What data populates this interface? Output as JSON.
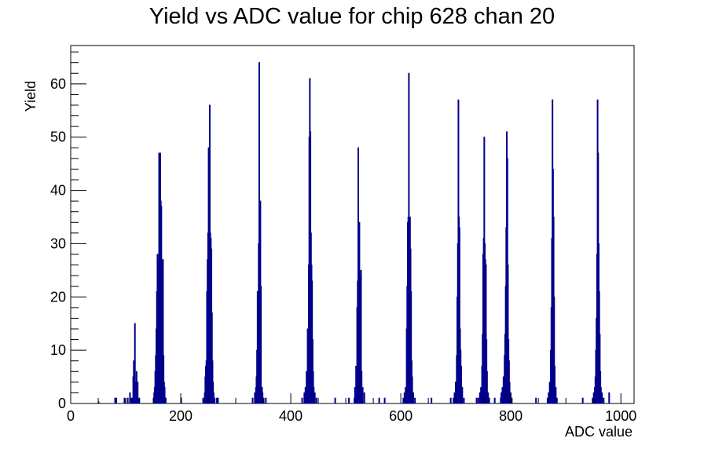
{
  "chart_data": {
    "type": "bar",
    "title": "Yield vs ADC value for chip 628 chan 20",
    "xlabel": "ADC value",
    "ylabel": "Yield",
    "xlim": [
      0,
      1024
    ],
    "ylim": [
      0,
      67.2
    ],
    "grid": false,
    "legend": "none",
    "x_ticks": [
      0,
      200,
      400,
      600,
      800,
      1000
    ],
    "y_ticks": [
      0,
      10,
      20,
      30,
      40,
      50,
      60
    ],
    "line_color": "#00008b",
    "bins": [
      {
        "x": 50,
        "y": 0.3
      },
      {
        "x": 80,
        "y": 1
      },
      {
        "x": 82,
        "y": 1
      },
      {
        "x": 97,
        "y": 1
      },
      {
        "x": 103,
        "y": 1
      },
      {
        "x": 107,
        "y": 2
      },
      {
        "x": 109,
        "y": 1
      },
      {
        "x": 111,
        "y": 1
      },
      {
        "x": 113,
        "y": 5
      },
      {
        "x": 114,
        "y": 8
      },
      {
        "x": 115,
        "y": 5
      },
      {
        "x": 116,
        "y": 15
      },
      {
        "x": 117,
        "y": 3
      },
      {
        "x": 118,
        "y": 4
      },
      {
        "x": 119,
        "y": 6
      },
      {
        "x": 120,
        "y": 2
      },
      {
        "x": 121,
        "y": 4
      },
      {
        "x": 122,
        "y": 1
      },
      {
        "x": 124,
        "y": 1
      },
      {
        "x": 150,
        "y": 1
      },
      {
        "x": 151,
        "y": 2
      },
      {
        "x": 152,
        "y": 3
      },
      {
        "x": 153,
        "y": 6
      },
      {
        "x": 154,
        "y": 9
      },
      {
        "x": 155,
        "y": 14
      },
      {
        "x": 156,
        "y": 21
      },
      {
        "x": 157,
        "y": 28
      },
      {
        "x": 158,
        "y": 25
      },
      {
        "x": 159,
        "y": 27
      },
      {
        "x": 160,
        "y": 47
      },
      {
        "x": 161,
        "y": 44
      },
      {
        "x": 162,
        "y": 47
      },
      {
        "x": 163,
        "y": 38
      },
      {
        "x": 164,
        "y": 37
      },
      {
        "x": 165,
        "y": 27
      },
      {
        "x": 166,
        "y": 12
      },
      {
        "x": 167,
        "y": 27
      },
      {
        "x": 168,
        "y": 9
      },
      {
        "x": 169,
        "y": 4
      },
      {
        "x": 170,
        "y": 3
      },
      {
        "x": 171,
        "y": 1
      },
      {
        "x": 172,
        "y": 1
      },
      {
        "x": 200,
        "y": 1
      },
      {
        "x": 240,
        "y": 1
      },
      {
        "x": 243,
        "y": 2
      },
      {
        "x": 244,
        "y": 5
      },
      {
        "x": 245,
        "y": 7
      },
      {
        "x": 246,
        "y": 8
      },
      {
        "x": 247,
        "y": 21
      },
      {
        "x": 248,
        "y": 27
      },
      {
        "x": 249,
        "y": 32
      },
      {
        "x": 250,
        "y": 48
      },
      {
        "x": 251,
        "y": 42
      },
      {
        "x": 252,
        "y": 56
      },
      {
        "x": 253,
        "y": 32
      },
      {
        "x": 254,
        "y": 31
      },
      {
        "x": 255,
        "y": 29
      },
      {
        "x": 256,
        "y": 17
      },
      {
        "x": 257,
        "y": 8
      },
      {
        "x": 258,
        "y": 4
      },
      {
        "x": 259,
        "y": 2
      },
      {
        "x": 261,
        "y": 1
      },
      {
        "x": 265,
        "y": 1
      },
      {
        "x": 267,
        "y": 1
      },
      {
        "x": 330,
        "y": 1
      },
      {
        "x": 334,
        "y": 2
      },
      {
        "x": 336,
        "y": 3
      },
      {
        "x": 337,
        "y": 5
      },
      {
        "x": 338,
        "y": 10
      },
      {
        "x": 339,
        "y": 21
      },
      {
        "x": 340,
        "y": 19
      },
      {
        "x": 341,
        "y": 30
      },
      {
        "x": 342,
        "y": 64
      },
      {
        "x": 343,
        "y": 35
      },
      {
        "x": 344,
        "y": 38
      },
      {
        "x": 345,
        "y": 22
      },
      {
        "x": 346,
        "y": 3
      },
      {
        "x": 347,
        "y": 3
      },
      {
        "x": 348,
        "y": 2
      },
      {
        "x": 350,
        "y": 1
      },
      {
        "x": 354,
        "y": 1
      },
      {
        "x": 420,
        "y": 1
      },
      {
        "x": 424,
        "y": 2
      },
      {
        "x": 426,
        "y": 3
      },
      {
        "x": 428,
        "y": 6
      },
      {
        "x": 430,
        "y": 14
      },
      {
        "x": 432,
        "y": 26
      },
      {
        "x": 433,
        "y": 50
      },
      {
        "x": 434,
        "y": 61
      },
      {
        "x": 435,
        "y": 51
      },
      {
        "x": 436,
        "y": 32
      },
      {
        "x": 437,
        "y": 26
      },
      {
        "x": 438,
        "y": 23
      },
      {
        "x": 439,
        "y": 12
      },
      {
        "x": 440,
        "y": 6
      },
      {
        "x": 441,
        "y": 3
      },
      {
        "x": 443,
        "y": 2
      },
      {
        "x": 446,
        "y": 1
      },
      {
        "x": 480,
        "y": 1
      },
      {
        "x": 505,
        "y": 1
      },
      {
        "x": 515,
        "y": 1
      },
      {
        "x": 516,
        "y": 3
      },
      {
        "x": 518,
        "y": 7
      },
      {
        "x": 520,
        "y": 18
      },
      {
        "x": 521,
        "y": 23
      },
      {
        "x": 522,
        "y": 48
      },
      {
        "x": 523,
        "y": 32
      },
      {
        "x": 524,
        "y": 34
      },
      {
        "x": 525,
        "y": 14
      },
      {
        "x": 526,
        "y": 24
      },
      {
        "x": 527,
        "y": 25
      },
      {
        "x": 528,
        "y": 6
      },
      {
        "x": 530,
        "y": 3
      },
      {
        "x": 533,
        "y": 2
      },
      {
        "x": 560,
        "y": 1
      },
      {
        "x": 570,
        "y": 1
      },
      {
        "x": 604,
        "y": 1
      },
      {
        "x": 606,
        "y": 2
      },
      {
        "x": 608,
        "y": 3
      },
      {
        "x": 610,
        "y": 14
      },
      {
        "x": 611,
        "y": 22
      },
      {
        "x": 612,
        "y": 34
      },
      {
        "x": 613,
        "y": 35
      },
      {
        "x": 614,
        "y": 62
      },
      {
        "x": 615,
        "y": 33
      },
      {
        "x": 616,
        "y": 35
      },
      {
        "x": 617,
        "y": 29
      },
      {
        "x": 618,
        "y": 21
      },
      {
        "x": 619,
        "y": 8
      },
      {
        "x": 620,
        "y": 5
      },
      {
        "x": 622,
        "y": 2
      },
      {
        "x": 625,
        "y": 1
      },
      {
        "x": 655,
        "y": 1
      },
      {
        "x": 690,
        "y": 1
      },
      {
        "x": 695,
        "y": 1
      },
      {
        "x": 697,
        "y": 2
      },
      {
        "x": 699,
        "y": 4
      },
      {
        "x": 701,
        "y": 9
      },
      {
        "x": 702,
        "y": 20
      },
      {
        "x": 703,
        "y": 30
      },
      {
        "x": 704,
        "y": 57
      },
      {
        "x": 705,
        "y": 35
      },
      {
        "x": 706,
        "y": 33
      },
      {
        "x": 707,
        "y": 14
      },
      {
        "x": 708,
        "y": 10
      },
      {
        "x": 709,
        "y": 7
      },
      {
        "x": 711,
        "y": 3
      },
      {
        "x": 714,
        "y": 1
      },
      {
        "x": 737,
        "y": 1
      },
      {
        "x": 740,
        "y": 1
      },
      {
        "x": 743,
        "y": 2
      },
      {
        "x": 745,
        "y": 3
      },
      {
        "x": 747,
        "y": 7
      },
      {
        "x": 748,
        "y": 13
      },
      {
        "x": 749,
        "y": 28
      },
      {
        "x": 750,
        "y": 31
      },
      {
        "x": 751,
        "y": 50
      },
      {
        "x": 752,
        "y": 30
      },
      {
        "x": 753,
        "y": 27
      },
      {
        "x": 754,
        "y": 26
      },
      {
        "x": 755,
        "y": 12
      },
      {
        "x": 756,
        "y": 6
      },
      {
        "x": 758,
        "y": 2
      },
      {
        "x": 760,
        "y": 1
      },
      {
        "x": 770,
        "y": 1
      },
      {
        "x": 781,
        "y": 1
      },
      {
        "x": 782,
        "y": 2
      },
      {
        "x": 784,
        "y": 3
      },
      {
        "x": 786,
        "y": 5
      },
      {
        "x": 788,
        "y": 9
      },
      {
        "x": 789,
        "y": 13
      },
      {
        "x": 790,
        "y": 22
      },
      {
        "x": 791,
        "y": 33
      },
      {
        "x": 792,
        "y": 51
      },
      {
        "x": 793,
        "y": 46
      },
      {
        "x": 794,
        "y": 26
      },
      {
        "x": 795,
        "y": 12
      },
      {
        "x": 796,
        "y": 8
      },
      {
        "x": 797,
        "y": 4
      },
      {
        "x": 799,
        "y": 2
      },
      {
        "x": 801,
        "y": 1
      },
      {
        "x": 845,
        "y": 1
      },
      {
        "x": 866,
        "y": 1
      },
      {
        "x": 868,
        "y": 2
      },
      {
        "x": 870,
        "y": 4
      },
      {
        "x": 872,
        "y": 10
      },
      {
        "x": 873,
        "y": 18
      },
      {
        "x": 874,
        "y": 31
      },
      {
        "x": 875,
        "y": 57
      },
      {
        "x": 876,
        "y": 44
      },
      {
        "x": 877,
        "y": 35
      },
      {
        "x": 878,
        "y": 20
      },
      {
        "x": 879,
        "y": 7
      },
      {
        "x": 881,
        "y": 3
      },
      {
        "x": 883,
        "y": 1
      },
      {
        "x": 930,
        "y": 1
      },
      {
        "x": 948,
        "y": 1
      },
      {
        "x": 950,
        "y": 2
      },
      {
        "x": 952,
        "y": 3
      },
      {
        "x": 953,
        "y": 5
      },
      {
        "x": 954,
        "y": 10
      },
      {
        "x": 955,
        "y": 16
      },
      {
        "x": 956,
        "y": 28
      },
      {
        "x": 957,
        "y": 57
      },
      {
        "x": 958,
        "y": 47
      },
      {
        "x": 959,
        "y": 30
      },
      {
        "x": 960,
        "y": 21
      },
      {
        "x": 961,
        "y": 13
      },
      {
        "x": 962,
        "y": 6
      },
      {
        "x": 963,
        "y": 3
      },
      {
        "x": 965,
        "y": 2
      },
      {
        "x": 968,
        "y": 1
      },
      {
        "x": 978,
        "y": 2
      }
    ]
  }
}
